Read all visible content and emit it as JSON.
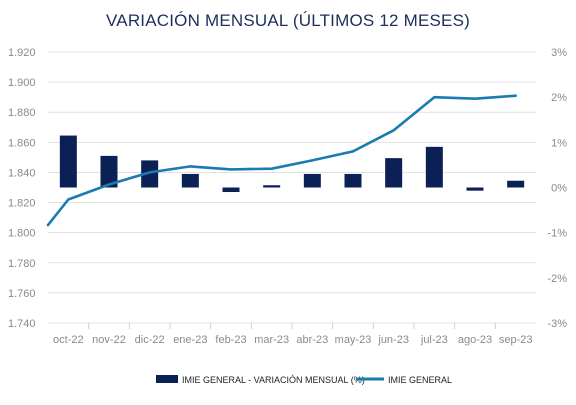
{
  "colors": {
    "bar": "#0b2055",
    "line": "#1b7bb0",
    "grid": "#e1e1e1",
    "axis_text": "#8a8a8a",
    "title": "#1b2f5c"
  },
  "chart_data": {
    "type": "bar",
    "title": "VARIACIÓN MENSUAL (ÚLTIMOS 12 MESES)",
    "categories": [
      "oct-22",
      "nov-22",
      "dic-22",
      "ene-23",
      "feb-23",
      "mar-23",
      "abr-23",
      "may-23",
      "jun-23",
      "jul-23",
      "ago-23",
      "sep-23"
    ],
    "y_left": {
      "range": [
        1740,
        1920
      ],
      "ticks": [
        1740,
        1760,
        1780,
        1800,
        1820,
        1840,
        1860,
        1880,
        1900,
        1920
      ],
      "tick_labels": [
        "1.740",
        "1.760",
        "1.780",
        "1.800",
        "1.820",
        "1.840",
        "1.860",
        "1.880",
        "1.900",
        "1.920"
      ]
    },
    "y_right": {
      "range": [
        -3,
        3
      ],
      "ticks": [
        -3,
        -2,
        -1,
        0,
        1,
        2,
        3
      ],
      "tick_labels": [
        "-3%",
        "-2%",
        "-1%",
        "0%",
        "1%",
        "2%",
        "3%"
      ]
    },
    "grid": true,
    "legend_position": "bottom",
    "series": [
      {
        "name": "IMIE GENERAL - VARIACIÓN MENSUAL (%)",
        "type": "bar",
        "axis": "right",
        "values": [
          1.15,
          0.7,
          0.6,
          0.3,
          -0.1,
          0.05,
          0.3,
          0.3,
          0.65,
          0.9,
          -0.07,
          0.15
        ]
      },
      {
        "name": "IMIE GENERAL",
        "type": "line",
        "axis": "left",
        "start_value": 1805,
        "values": [
          1822,
          1832,
          1840,
          1844,
          1842,
          1842.5,
          1848,
          1854,
          1868,
          1890,
          1889,
          1891
        ]
      }
    ]
  }
}
